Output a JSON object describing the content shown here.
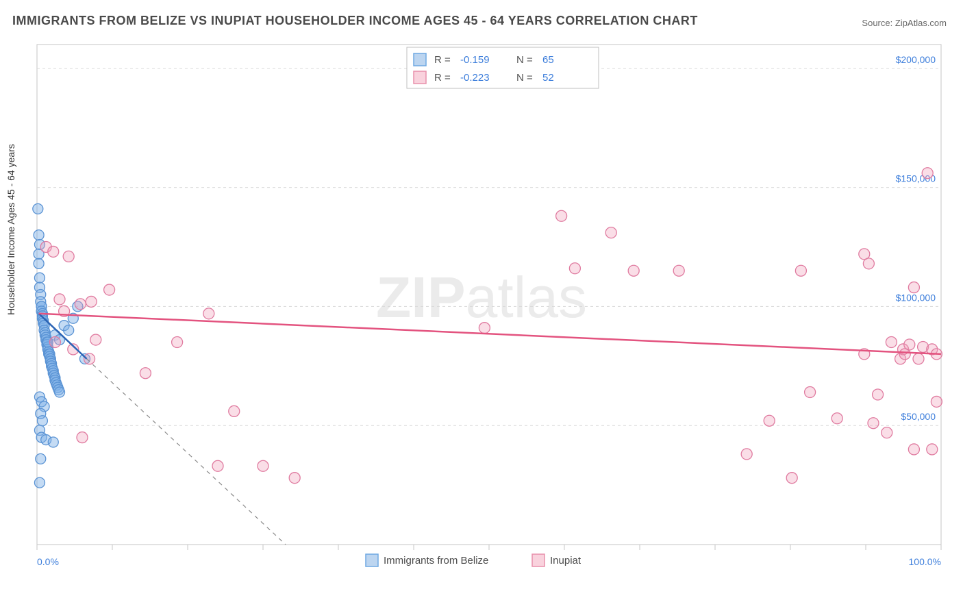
{
  "title": "IMMIGRANTS FROM BELIZE VS INUPIAT HOUSEHOLDER INCOME AGES 45 - 64 YEARS CORRELATION CHART",
  "source_label": "Source:",
  "source_site": "ZipAtlas.com",
  "watermark_a": "ZIP",
  "watermark_b": "atlas",
  "ylabel": "Householder Income Ages 45 - 64 years",
  "chart": {
    "type": "scatter",
    "background_color": "#ffffff",
    "grid_color": "#d8d8d8",
    "border_color": "#c5c5c5",
    "axis_text_color": "#3d7edb",
    "xlim": [
      0,
      100
    ],
    "ylim": [
      0,
      210000
    ],
    "x_ticks": [
      0,
      8.33,
      16.67,
      25,
      33.33,
      41.67,
      50,
      58.33,
      66.67,
      75,
      83.33,
      91.67,
      100
    ],
    "x_tick_labels": {
      "0": "0.0%",
      "100": "100.0%"
    },
    "y_ticks": [
      50000,
      100000,
      150000,
      200000
    ],
    "y_tick_labels": {
      "50000": "$50,000",
      "100000": "$100,000",
      "150000": "$150,000",
      "200000": "$200,000"
    },
    "legend_top": {
      "rows": [
        {
          "swatch_fill": "#bcd5f0",
          "swatch_stroke": "#6fa8e2",
          "r_label": "R =",
          "r_value": "-0.159",
          "n_label": "N =",
          "n_value": "65"
        },
        {
          "swatch_fill": "#f9d2dd",
          "swatch_stroke": "#e890ab",
          "r_label": "R =",
          "r_value": "-0.223",
          "n_label": "N =",
          "n_value": "52"
        }
      ]
    },
    "legend_bottom": {
      "items": [
        {
          "swatch_fill": "#bcd5f0",
          "swatch_stroke": "#6fa8e2",
          "label": "Immigrants from Belize"
        },
        {
          "swatch_fill": "#f9d2dd",
          "swatch_stroke": "#e890ab",
          "label": "Inupiat"
        }
      ]
    },
    "series": [
      {
        "name": "Immigrants from Belize",
        "marker_fill": "rgba(125,175,230,0.45)",
        "marker_stroke": "#5a93d4",
        "marker_radius": 7.5,
        "trend_stroke": "#2b64b5",
        "trend_width": 2.5,
        "trend": {
          "x1": 0.2,
          "y1": 97000,
          "x2": 5.5,
          "y2": 78000
        },
        "trend_ext": {
          "x1": 5.5,
          "y1": 78000,
          "x2": 27.5,
          "y2": 0,
          "stroke": "#8a8a8a",
          "dash": "6 6"
        },
        "points": [
          [
            0.1,
            141000
          ],
          [
            0.2,
            130000
          ],
          [
            0.3,
            126000
          ],
          [
            0.2,
            122000
          ],
          [
            0.2,
            118000
          ],
          [
            0.3,
            112000
          ],
          [
            0.3,
            108000
          ],
          [
            0.4,
            105000
          ],
          [
            0.4,
            102000
          ],
          [
            0.5,
            100000
          ],
          [
            0.5,
            100000
          ],
          [
            0.5,
            98000
          ],
          [
            0.6,
            97000
          ],
          [
            0.6,
            96000
          ],
          [
            0.6,
            95000
          ],
          [
            0.7,
            94000
          ],
          [
            0.7,
            93000
          ],
          [
            0.8,
            92000
          ],
          [
            0.8,
            90000
          ],
          [
            0.9,
            89000
          ],
          [
            0.9,
            88000
          ],
          [
            1.0,
            87000
          ],
          [
            1.0,
            86000
          ],
          [
            1.1,
            85000
          ],
          [
            1.1,
            84000
          ],
          [
            1.2,
            83000
          ],
          [
            1.2,
            82000
          ],
          [
            1.3,
            81000
          ],
          [
            1.3,
            80000
          ],
          [
            1.4,
            80000
          ],
          [
            1.4,
            79000
          ],
          [
            1.5,
            78000
          ],
          [
            1.5,
            77000
          ],
          [
            1.6,
            76000
          ],
          [
            1.6,
            75000
          ],
          [
            1.7,
            74000
          ],
          [
            1.8,
            73000
          ],
          [
            1.8,
            72000
          ],
          [
            1.9,
            71000
          ],
          [
            2.0,
            70000
          ],
          [
            2.0,
            69000
          ],
          [
            2.1,
            68000
          ],
          [
            2.2,
            67000
          ],
          [
            2.3,
            66000
          ],
          [
            2.4,
            65000
          ],
          [
            2.5,
            64000
          ],
          [
            0.3,
            62000
          ],
          [
            0.5,
            60000
          ],
          [
            0.8,
            58000
          ],
          [
            0.4,
            55000
          ],
          [
            0.6,
            52000
          ],
          [
            0.3,
            48000
          ],
          [
            0.5,
            45000
          ],
          [
            1.0,
            44000
          ],
          [
            1.8,
            43000
          ],
          [
            0.4,
            36000
          ],
          [
            1.2,
            85000
          ],
          [
            2.0,
            88000
          ],
          [
            2.5,
            86000
          ],
          [
            3.0,
            92000
          ],
          [
            3.5,
            90000
          ],
          [
            4.0,
            95000
          ],
          [
            4.5,
            100000
          ],
          [
            5.3,
            78000
          ],
          [
            0.3,
            26000
          ]
        ]
      },
      {
        "name": "Inupiat",
        "marker_fill": "rgba(240,160,185,0.35)",
        "marker_stroke": "#e07ba0",
        "marker_radius": 8,
        "trend_stroke": "#e3537f",
        "trend_width": 2.5,
        "trend": {
          "x1": 0.2,
          "y1": 97000,
          "x2": 100,
          "y2": 80000
        },
        "points": [
          [
            1.0,
            125000
          ],
          [
            1.8,
            123000
          ],
          [
            2.5,
            103000
          ],
          [
            3.0,
            98000
          ],
          [
            3.5,
            121000
          ],
          [
            4.8,
            101000
          ],
          [
            5.8,
            78000
          ],
          [
            6.5,
            86000
          ],
          [
            8.0,
            107000
          ],
          [
            5.0,
            45000
          ],
          [
            6.0,
            102000
          ],
          [
            12.0,
            72000
          ],
          [
            15.5,
            85000
          ],
          [
            19.0,
            97000
          ],
          [
            20.0,
            33000
          ],
          [
            21.8,
            56000
          ],
          [
            25.0,
            33000
          ],
          [
            28.5,
            28000
          ],
          [
            49.5,
            91000
          ],
          [
            58.0,
            138000
          ],
          [
            59.5,
            116000
          ],
          [
            63.5,
            131000
          ],
          [
            66.0,
            115000
          ],
          [
            71.0,
            115000
          ],
          [
            78.5,
            38000
          ],
          [
            81.0,
            52000
          ],
          [
            83.5,
            28000
          ],
          [
            84.5,
            115000
          ],
          [
            85.5,
            64000
          ],
          [
            88.5,
            53000
          ],
          [
            91.5,
            122000
          ],
          [
            91.5,
            80000
          ],
          [
            92.0,
            118000
          ],
          [
            92.5,
            51000
          ],
          [
            93.0,
            63000
          ],
          [
            94.0,
            47000
          ],
          [
            94.5,
            85000
          ],
          [
            95.5,
            78000
          ],
          [
            95.8,
            82000
          ],
          [
            96.0,
            80000
          ],
          [
            96.5,
            84000
          ],
          [
            97.0,
            108000
          ],
          [
            97.0,
            40000
          ],
          [
            97.5,
            78000
          ],
          [
            98.0,
            83000
          ],
          [
            98.5,
            156000
          ],
          [
            99.0,
            82000
          ],
          [
            99.0,
            40000
          ],
          [
            99.5,
            60000
          ],
          [
            99.5,
            80000
          ],
          [
            2.0,
            85000
          ],
          [
            4.0,
            82000
          ]
        ]
      }
    ]
  }
}
